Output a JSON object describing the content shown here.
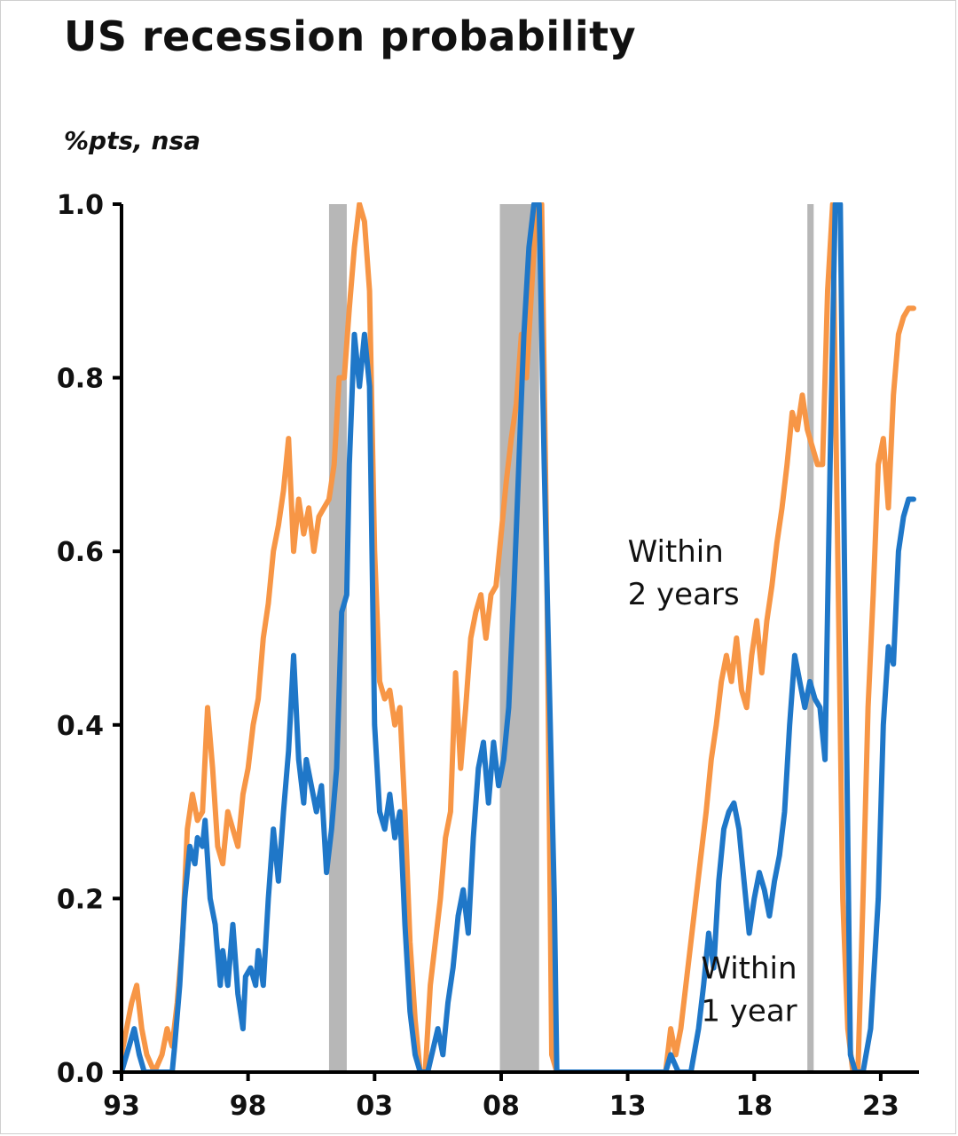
{
  "chart_data": {
    "type": "line",
    "title": "US recession probability",
    "subtitle": "%pts, nsa",
    "xlabel": "",
    "ylabel": "",
    "xlim": [
      1993,
      2024.3
    ],
    "ylim": [
      0,
      1
    ],
    "x_ticks": [
      {
        "x": 1993,
        "label": "93"
      },
      {
        "x": 1998,
        "label": "98"
      },
      {
        "x": 2003,
        "label": "03"
      },
      {
        "x": 2008,
        "label": "08"
      },
      {
        "x": 2013,
        "label": "13"
      },
      {
        "x": 2018,
        "label": "18"
      },
      {
        "x": 2023,
        "label": "23"
      }
    ],
    "y_ticks": [
      {
        "y": 0.0,
        "label": "0.0"
      },
      {
        "y": 0.2,
        "label": "0.2"
      },
      {
        "y": 0.4,
        "label": "0.4"
      },
      {
        "y": 0.6,
        "label": "0.6"
      },
      {
        "y": 0.8,
        "label": "0.8"
      },
      {
        "y": 1.0,
        "label": "1.0"
      }
    ],
    "grid": false,
    "legend": "none",
    "recessions": [
      {
        "start": 2001.2,
        "end": 2001.9
      },
      {
        "start": 2007.95,
        "end": 2009.5
      },
      {
        "start": 2020.1,
        "end": 2020.35
      }
    ],
    "annotations": [
      {
        "lines": [
          "Within",
          "2 years"
        ],
        "x": 2013.0,
        "y": 0.6
      },
      {
        "lines": [
          "Within",
          "1 year"
        ],
        "x": 2015.9,
        "y": 0.12
      }
    ],
    "series": [
      {
        "name": "Within 1 year",
        "color": "#1f77c8",
        "points": [
          [
            1993.0,
            0.0
          ],
          [
            1993.3,
            0.03
          ],
          [
            1993.5,
            0.05
          ],
          [
            1993.7,
            0.02
          ],
          [
            1993.9,
            0.0
          ],
          [
            1994.5,
            0.0
          ],
          [
            1995.0,
            0.0
          ],
          [
            1995.1,
            0.03
          ],
          [
            1995.3,
            0.1
          ],
          [
            1995.5,
            0.2
          ],
          [
            1995.7,
            0.26
          ],
          [
            1995.9,
            0.24
          ],
          [
            1996.0,
            0.27
          ],
          [
            1996.2,
            0.26
          ],
          [
            1996.3,
            0.29
          ],
          [
            1996.5,
            0.2
          ],
          [
            1996.7,
            0.17
          ],
          [
            1996.9,
            0.1
          ],
          [
            1997.0,
            0.14
          ],
          [
            1997.2,
            0.1
          ],
          [
            1997.4,
            0.17
          ],
          [
            1997.6,
            0.09
          ],
          [
            1997.8,
            0.05
          ],
          [
            1997.9,
            0.11
          ],
          [
            1998.1,
            0.12
          ],
          [
            1998.3,
            0.1
          ],
          [
            1998.4,
            0.14
          ],
          [
            1998.6,
            0.1
          ],
          [
            1998.8,
            0.2
          ],
          [
            1999.0,
            0.28
          ],
          [
            1999.2,
            0.22
          ],
          [
            1999.4,
            0.3
          ],
          [
            1999.6,
            0.37
          ],
          [
            1999.8,
            0.48
          ],
          [
            2000.0,
            0.36
          ],
          [
            2000.2,
            0.31
          ],
          [
            2000.3,
            0.36
          ],
          [
            2000.5,
            0.33
          ],
          [
            2000.7,
            0.3
          ],
          [
            2000.9,
            0.33
          ],
          [
            2001.1,
            0.23
          ],
          [
            2001.3,
            0.28
          ],
          [
            2001.5,
            0.35
          ],
          [
            2001.7,
            0.53
          ],
          [
            2001.9,
            0.55
          ],
          [
            2002.0,
            0.7
          ],
          [
            2002.2,
            0.85
          ],
          [
            2002.4,
            0.79
          ],
          [
            2002.6,
            0.85
          ],
          [
            2002.8,
            0.79
          ],
          [
            2003.0,
            0.4
          ],
          [
            2003.2,
            0.3
          ],
          [
            2003.4,
            0.28
          ],
          [
            2003.6,
            0.32
          ],
          [
            2003.8,
            0.27
          ],
          [
            2004.0,
            0.3
          ],
          [
            2004.2,
            0.17
          ],
          [
            2004.4,
            0.07
          ],
          [
            2004.6,
            0.02
          ],
          [
            2004.8,
            0.0
          ],
          [
            2005.1,
            0.0
          ],
          [
            2005.5,
            0.05
          ],
          [
            2005.7,
            0.02
          ],
          [
            2005.9,
            0.08
          ],
          [
            2006.1,
            0.12
          ],
          [
            2006.3,
            0.18
          ],
          [
            2006.5,
            0.21
          ],
          [
            2006.7,
            0.16
          ],
          [
            2006.9,
            0.27
          ],
          [
            2007.1,
            0.35
          ],
          [
            2007.3,
            0.38
          ],
          [
            2007.5,
            0.31
          ],
          [
            2007.7,
            0.38
          ],
          [
            2007.9,
            0.33
          ],
          [
            2008.1,
            0.36
          ],
          [
            2008.3,
            0.42
          ],
          [
            2008.5,
            0.55
          ],
          [
            2008.7,
            0.7
          ],
          [
            2008.9,
            0.85
          ],
          [
            2009.1,
            0.95
          ],
          [
            2009.3,
            1.0
          ],
          [
            2009.5,
            1.0
          ],
          [
            2009.7,
            0.7
          ],
          [
            2009.9,
            0.45
          ],
          [
            2010.1,
            0.2
          ],
          [
            2010.2,
            0.0
          ],
          [
            2011.0,
            0.0
          ],
          [
            2013.0,
            0.0
          ],
          [
            2014.5,
            0.0
          ],
          [
            2014.7,
            0.02
          ],
          [
            2015.0,
            0.0
          ],
          [
            2015.5,
            0.0
          ],
          [
            2015.8,
            0.05
          ],
          [
            2016.0,
            0.1
          ],
          [
            2016.2,
            0.16
          ],
          [
            2016.4,
            0.12
          ],
          [
            2016.6,
            0.22
          ],
          [
            2016.8,
            0.28
          ],
          [
            2017.0,
            0.3
          ],
          [
            2017.2,
            0.31
          ],
          [
            2017.4,
            0.28
          ],
          [
            2017.6,
            0.22
          ],
          [
            2017.8,
            0.16
          ],
          [
            2018.0,
            0.2
          ],
          [
            2018.2,
            0.23
          ],
          [
            2018.4,
            0.21
          ],
          [
            2018.6,
            0.18
          ],
          [
            2018.8,
            0.22
          ],
          [
            2019.0,
            0.25
          ],
          [
            2019.2,
            0.3
          ],
          [
            2019.4,
            0.4
          ],
          [
            2019.6,
            0.48
          ],
          [
            2019.8,
            0.45
          ],
          [
            2020.0,
            0.42
          ],
          [
            2020.2,
            0.45
          ],
          [
            2020.4,
            0.43
          ],
          [
            2020.6,
            0.42
          ],
          [
            2020.8,
            0.36
          ],
          [
            2021.0,
            0.7
          ],
          [
            2021.2,
            1.0
          ],
          [
            2021.4,
            1.0
          ],
          [
            2021.6,
            0.5
          ],
          [
            2021.8,
            0.02
          ],
          [
            2022.0,
            0.0
          ],
          [
            2022.3,
            0.0
          ],
          [
            2022.6,
            0.05
          ],
          [
            2022.9,
            0.2
          ],
          [
            2023.1,
            0.4
          ],
          [
            2023.3,
            0.49
          ],
          [
            2023.5,
            0.47
          ],
          [
            2023.7,
            0.6
          ],
          [
            2023.9,
            0.64
          ],
          [
            2024.1,
            0.66
          ],
          [
            2024.3,
            0.66
          ]
        ]
      },
      {
        "name": "Within 2 years",
        "color": "#f79646",
        "points": [
          [
            1993.0,
            0.02
          ],
          [
            1993.2,
            0.05
          ],
          [
            1993.4,
            0.08
          ],
          [
            1993.6,
            0.1
          ],
          [
            1993.8,
            0.05
          ],
          [
            1994.0,
            0.02
          ],
          [
            1994.3,
            0.0
          ],
          [
            1994.6,
            0.02
          ],
          [
            1994.8,
            0.05
          ],
          [
            1995.0,
            0.03
          ],
          [
            1995.2,
            0.08
          ],
          [
            1995.4,
            0.15
          ],
          [
            1995.6,
            0.28
          ],
          [
            1995.8,
            0.32
          ],
          [
            1996.0,
            0.29
          ],
          [
            1996.2,
            0.3
          ],
          [
            1996.4,
            0.42
          ],
          [
            1996.6,
            0.35
          ],
          [
            1996.8,
            0.26
          ],
          [
            1997.0,
            0.24
          ],
          [
            1997.2,
            0.3
          ],
          [
            1997.4,
            0.28
          ],
          [
            1997.6,
            0.26
          ],
          [
            1997.8,
            0.32
          ],
          [
            1998.0,
            0.35
          ],
          [
            1998.2,
            0.4
          ],
          [
            1998.4,
            0.43
          ],
          [
            1998.6,
            0.5
          ],
          [
            1998.8,
            0.54
          ],
          [
            1999.0,
            0.6
          ],
          [
            1999.2,
            0.63
          ],
          [
            1999.4,
            0.67
          ],
          [
            1999.6,
            0.73
          ],
          [
            1999.8,
            0.6
          ],
          [
            2000.0,
            0.66
          ],
          [
            2000.2,
            0.62
          ],
          [
            2000.4,
            0.65
          ],
          [
            2000.6,
            0.6
          ],
          [
            2000.8,
            0.64
          ],
          [
            2001.0,
            0.65
          ],
          [
            2001.2,
            0.66
          ],
          [
            2001.4,
            0.7
          ],
          [
            2001.6,
            0.8
          ],
          [
            2001.8,
            0.8
          ],
          [
            2002.0,
            0.88
          ],
          [
            2002.2,
            0.95
          ],
          [
            2002.4,
            1.0
          ],
          [
            2002.6,
            0.98
          ],
          [
            2002.8,
            0.9
          ],
          [
            2003.0,
            0.6
          ],
          [
            2003.2,
            0.45
          ],
          [
            2003.4,
            0.43
          ],
          [
            2003.6,
            0.44
          ],
          [
            2003.8,
            0.4
          ],
          [
            2004.0,
            0.42
          ],
          [
            2004.2,
            0.3
          ],
          [
            2004.4,
            0.15
          ],
          [
            2004.6,
            0.06
          ],
          [
            2004.8,
            0.0
          ],
          [
            2005.0,
            0.0
          ],
          [
            2005.2,
            0.1
          ],
          [
            2005.4,
            0.15
          ],
          [
            2005.6,
            0.2
          ],
          [
            2005.8,
            0.27
          ],
          [
            2006.0,
            0.3
          ],
          [
            2006.2,
            0.46
          ],
          [
            2006.4,
            0.35
          ],
          [
            2006.6,
            0.42
          ],
          [
            2006.8,
            0.5
          ],
          [
            2007.0,
            0.53
          ],
          [
            2007.2,
            0.55
          ],
          [
            2007.4,
            0.5
          ],
          [
            2007.6,
            0.55
          ],
          [
            2007.8,
            0.56
          ],
          [
            2008.0,
            0.62
          ],
          [
            2008.2,
            0.68
          ],
          [
            2008.4,
            0.73
          ],
          [
            2008.6,
            0.77
          ],
          [
            2008.8,
            0.85
          ],
          [
            2009.0,
            0.8
          ],
          [
            2009.2,
            0.9
          ],
          [
            2009.4,
            1.0
          ],
          [
            2009.6,
            1.0
          ],
          [
            2009.8,
            0.6
          ],
          [
            2010.0,
            0.02
          ],
          [
            2010.2,
            0.0
          ],
          [
            2013.0,
            0.0
          ],
          [
            2014.5,
            0.0
          ],
          [
            2014.7,
            0.05
          ],
          [
            2014.9,
            0.02
          ],
          [
            2015.1,
            0.05
          ],
          [
            2015.3,
            0.1
          ],
          [
            2015.5,
            0.15
          ],
          [
            2015.7,
            0.2
          ],
          [
            2015.9,
            0.25
          ],
          [
            2016.1,
            0.3
          ],
          [
            2016.3,
            0.36
          ],
          [
            2016.5,
            0.4
          ],
          [
            2016.7,
            0.45
          ],
          [
            2016.9,
            0.48
          ],
          [
            2017.1,
            0.45
          ],
          [
            2017.3,
            0.5
          ],
          [
            2017.5,
            0.44
          ],
          [
            2017.7,
            0.42
          ],
          [
            2017.9,
            0.48
          ],
          [
            2018.1,
            0.52
          ],
          [
            2018.3,
            0.46
          ],
          [
            2018.5,
            0.52
          ],
          [
            2018.7,
            0.56
          ],
          [
            2018.9,
            0.61
          ],
          [
            2019.1,
            0.65
          ],
          [
            2019.3,
            0.7
          ],
          [
            2019.5,
            0.76
          ],
          [
            2019.7,
            0.74
          ],
          [
            2019.9,
            0.78
          ],
          [
            2020.1,
            0.74
          ],
          [
            2020.3,
            0.72
          ],
          [
            2020.5,
            0.7
          ],
          [
            2020.7,
            0.7
          ],
          [
            2020.9,
            0.9
          ],
          [
            2021.1,
            1.0
          ],
          [
            2021.3,
            0.6
          ],
          [
            2021.5,
            0.2
          ],
          [
            2021.7,
            0.05
          ],
          [
            2021.9,
            0.0
          ],
          [
            2022.1,
            0.0
          ],
          [
            2022.3,
            0.2
          ],
          [
            2022.5,
            0.42
          ],
          [
            2022.7,
            0.55
          ],
          [
            2022.9,
            0.7
          ],
          [
            2023.1,
            0.73
          ],
          [
            2023.3,
            0.65
          ],
          [
            2023.5,
            0.78
          ],
          [
            2023.7,
            0.85
          ],
          [
            2023.9,
            0.87
          ],
          [
            2024.1,
            0.88
          ],
          [
            2024.3,
            0.88
          ]
        ]
      }
    ]
  }
}
